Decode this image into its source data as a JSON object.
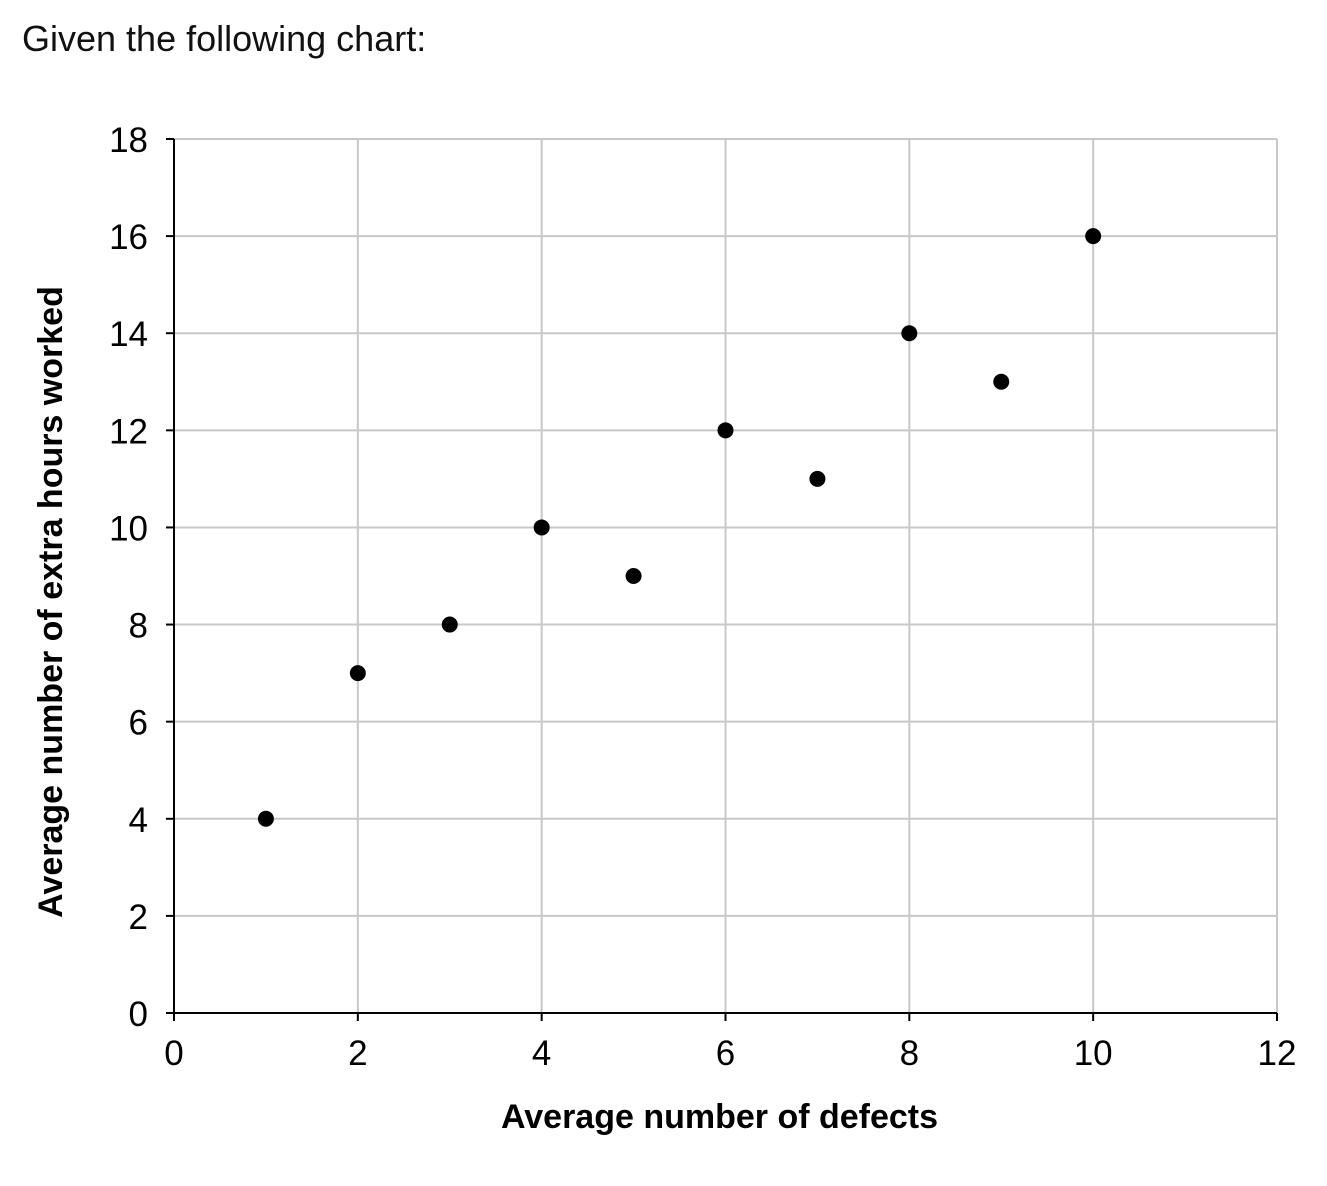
{
  "prompt": "Given the following chart:",
  "chart_data": {
    "type": "scatter",
    "title": "",
    "xlabel": "Average number of defects",
    "ylabel": "Average number of extra hours worked",
    "xlim": [
      0,
      12
    ],
    "ylim": [
      0,
      18
    ],
    "xticks": [
      0,
      2,
      4,
      6,
      8,
      10,
      12
    ],
    "yticks": [
      0,
      2,
      4,
      6,
      8,
      10,
      12,
      14,
      16,
      18
    ],
    "grid": true,
    "legend": "none",
    "marker_color": "#000000",
    "grid_color": "#c8c8c8",
    "series": [
      {
        "x": [
          1,
          2,
          3,
          4,
          5,
          6,
          7,
          8,
          9,
          10
        ],
        "y": [
          4,
          7,
          8,
          10,
          9,
          12,
          11,
          14,
          13,
          16
        ]
      }
    ]
  }
}
